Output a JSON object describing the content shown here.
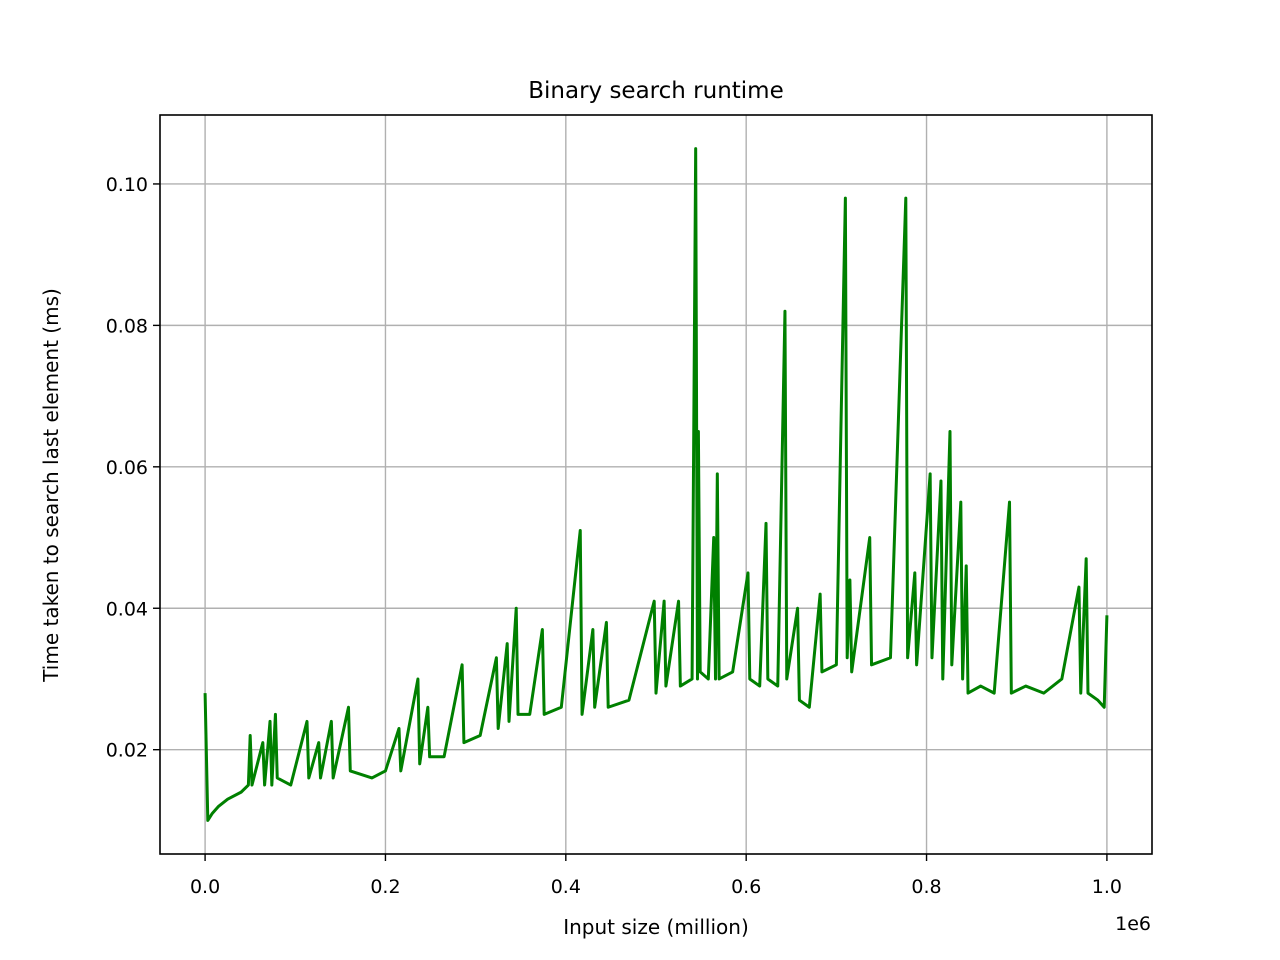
{
  "chart_data": {
    "type": "line",
    "title": "Binary search runtime",
    "x_label": "Input size (million)",
    "y_label": "Time taken to search last element (ms)",
    "x_offset_label": "1e6",
    "color": "#008000",
    "grid": true,
    "xlim": [
      -50000,
      1050000
    ],
    "xticks": [
      {
        "value": 0,
        "label": "0.0"
      },
      {
        "value": 200000,
        "label": "0.2"
      },
      {
        "value": 400000,
        "label": "0.4"
      },
      {
        "value": 600000,
        "label": "0.6"
      },
      {
        "value": 800000,
        "label": "0.8"
      },
      {
        "value": 1000000,
        "label": "1.0"
      }
    ],
    "ylim": [
      0.00525,
      0.10975
    ],
    "yticks": [
      0.02,
      0.04,
      0.06,
      0.08,
      {
        "value": 0.1,
        "label": "0.10"
      }
    ],
    "x": [
      0,
      3000,
      8000,
      15000,
      25000,
      40000,
      48000,
      50000,
      52000,
      64000,
      66000,
      72000,
      74000,
      78000,
      80000,
      95000,
      113000,
      115000,
      126000,
      128000,
      140000,
      142000,
      159000,
      161000,
      185000,
      200000,
      215000,
      217000,
      236000,
      238000,
      247000,
      249000,
      265000,
      285000,
      287000,
      305000,
      323000,
      325000,
      335000,
      337000,
      345000,
      347000,
      360000,
      374000,
      376000,
      395000,
      416000,
      418000,
      430000,
      432000,
      445000,
      447000,
      470000,
      498000,
      500000,
      509000,
      511000,
      525000,
      527000,
      540000,
      544000,
      546000,
      547000,
      549000,
      558000,
      564000,
      566000,
      568000,
      570000,
      585000,
      602000,
      604000,
      615000,
      622000,
      624000,
      635000,
      643000,
      645000,
      657000,
      659000,
      670000,
      682000,
      684000,
      700000,
      710000,
      712000,
      715000,
      717000,
      737000,
      739000,
      760000,
      777000,
      779000,
      787000,
      789000,
      804000,
      806000,
      816000,
      818000,
      826000,
      828000,
      838000,
      840000,
      844000,
      846000,
      860000,
      875000,
      892000,
      894000,
      910000,
      930000,
      950000,
      969000,
      971000,
      977000,
      979000,
      990000,
      997000,
      1000000
    ],
    "values": [
      0.028,
      0.01,
      0.011,
      0.012,
      0.013,
      0.014,
      0.015,
      0.022,
      0.015,
      0.021,
      0.015,
      0.024,
      0.015,
      0.025,
      0.016,
      0.015,
      0.024,
      0.016,
      0.021,
      0.016,
      0.024,
      0.016,
      0.026,
      0.017,
      0.016,
      0.017,
      0.023,
      0.017,
      0.03,
      0.018,
      0.026,
      0.019,
      0.019,
      0.032,
      0.021,
      0.022,
      0.033,
      0.023,
      0.035,
      0.024,
      0.04,
      0.025,
      0.025,
      0.037,
      0.025,
      0.026,
      0.051,
      0.025,
      0.037,
      0.026,
      0.038,
      0.026,
      0.027,
      0.041,
      0.028,
      0.041,
      0.029,
      0.041,
      0.029,
      0.03,
      0.105,
      0.03,
      0.065,
      0.031,
      0.03,
      0.05,
      0.03,
      0.059,
      0.03,
      0.031,
      0.045,
      0.03,
      0.029,
      0.052,
      0.03,
      0.029,
      0.082,
      0.03,
      0.04,
      0.027,
      0.026,
      0.042,
      0.031,
      0.032,
      0.098,
      0.033,
      0.044,
      0.031,
      0.05,
      0.032,
      0.033,
      0.098,
      0.033,
      0.045,
      0.032,
      0.059,
      0.033,
      0.058,
      0.03,
      0.065,
      0.032,
      0.055,
      0.03,
      0.046,
      0.028,
      0.029,
      0.028,
      0.055,
      0.028,
      0.029,
      0.028,
      0.03,
      0.043,
      0.028,
      0.047,
      0.028,
      0.027,
      0.026,
      0.039
    ]
  }
}
